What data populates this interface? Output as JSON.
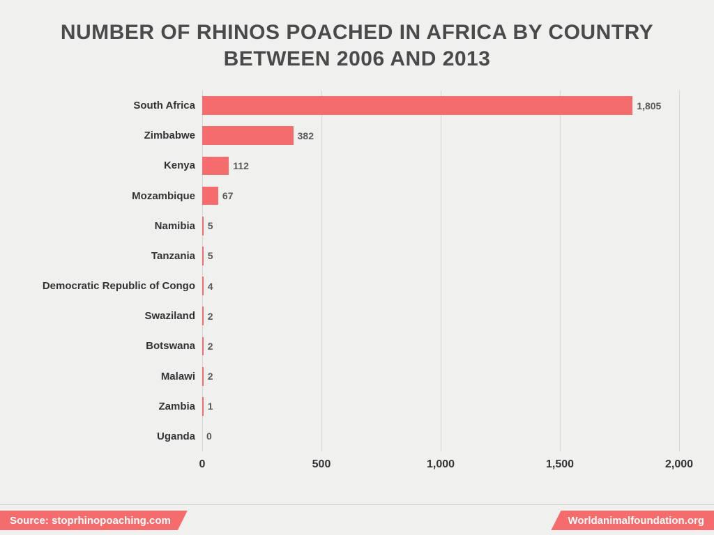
{
  "title": "NUMBER OF RHINOS POACHED IN AFRICA BY COUNTRY BETWEEN 2006 AND 2013",
  "title_fontsize": 30,
  "title_color": "#4a4a4a",
  "chart": {
    "type": "bar-horizontal",
    "background_color": "#f0f0ef",
    "bar_color": "#f56c6c",
    "grid_color": "#d6d6d4",
    "label_color": "#333333",
    "value_label_color": "#5a5a5a",
    "ylabel_fontsize": 15,
    "value_fontsize": 14,
    "xtick_fontsize": 16,
    "xlim": [
      0,
      2000
    ],
    "xtick_step": 500,
    "xticks": [
      0,
      500,
      1000,
      1500,
      2000
    ],
    "xtick_labels": [
      "0",
      "500",
      "1,000",
      "1,500",
      "2,000"
    ],
    "label_col_width": 230,
    "categories": [
      "South Africa",
      "Zimbabwe",
      "Kenya",
      "Mozambique",
      "Namibia",
      "Tanzania",
      "Democratic Republic of Congo",
      "Swaziland",
      "Botswana",
      "Malawi",
      "Zambia",
      "Uganda"
    ],
    "values": [
      1805,
      382,
      112,
      67,
      5,
      5,
      4,
      2,
      2,
      2,
      1,
      0
    ],
    "value_labels": [
      "1,805",
      "382",
      "112",
      "67",
      "5",
      "5",
      "4",
      "2",
      "2",
      "2",
      "1",
      "0"
    ]
  },
  "footer": {
    "source_label": "Source: stoprhinopoaching.com",
    "site_label": "Worldanimalfoundation.org",
    "ribbon_color": "#f56c6c",
    "text_color": "#ffffff",
    "fontsize": 15
  }
}
